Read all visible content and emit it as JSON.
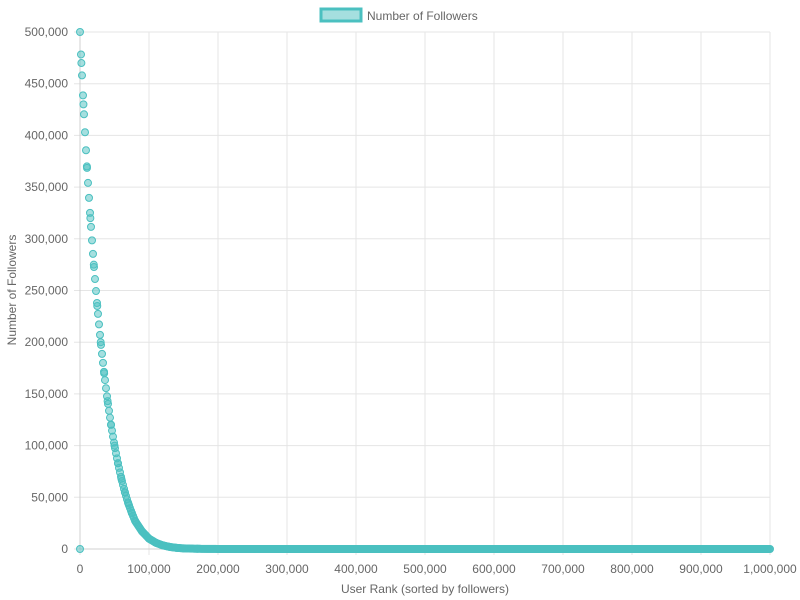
{
  "chart_data": {
    "type": "scatter",
    "title": "",
    "xlabel": "User Rank (sorted by followers)",
    "ylabel": "Number of Followers",
    "xlim": [
      0,
      1000000
    ],
    "ylim": [
      0,
      500000
    ],
    "x_ticks": [
      "0",
      "100,000",
      "200,000",
      "300,000",
      "400,000",
      "500,000",
      "600,000",
      "700,000",
      "800,000",
      "900,000",
      "1,000,000"
    ],
    "y_ticks": [
      "0",
      "50,000",
      "100,000",
      "150,000",
      "200,000",
      "250,000",
      "300,000",
      "350,000",
      "400,000",
      "450,000",
      "500,000"
    ],
    "grid": true,
    "legend_position": "top-center",
    "series": [
      {
        "name": "Number of Followers",
        "color": "#4bc0c0",
        "fill": "rgba(75,192,192,0.5)",
        "points": [
          {
            "x": 1,
            "y": 500000
          },
          {
            "x": 2000,
            "y": 470000
          },
          {
            "x": 5000,
            "y": 430000
          },
          {
            "x": 10000,
            "y": 370000
          },
          {
            "x": 15000,
            "y": 320000
          },
          {
            "x": 20000,
            "y": 275000
          },
          {
            "x": 25000,
            "y": 235000
          },
          {
            "x": 30000,
            "y": 200000
          },
          {
            "x": 35000,
            "y": 170000
          },
          {
            "x": 40000,
            "y": 143000
          },
          {
            "x": 45000,
            "y": 120000
          },
          {
            "x": 50000,
            "y": 100000
          },
          {
            "x": 55000,
            "y": 83000
          },
          {
            "x": 60000,
            "y": 68000
          },
          {
            "x": 65000,
            "y": 55000
          },
          {
            "x": 70000,
            "y": 44000
          },
          {
            "x": 75000,
            "y": 35000
          },
          {
            "x": 80000,
            "y": 27000
          },
          {
            "x": 90000,
            "y": 17000
          },
          {
            "x": 100000,
            "y": 10000
          },
          {
            "x": 110000,
            "y": 6000
          },
          {
            "x": 120000,
            "y": 3500
          },
          {
            "x": 130000,
            "y": 2000
          },
          {
            "x": 140000,
            "y": 1100
          },
          {
            "x": 150000,
            "y": 600
          },
          {
            "x": 170000,
            "y": 200
          },
          {
            "x": 200000,
            "y": 50
          },
          {
            "x": 300000,
            "y": 5
          },
          {
            "x": 400000,
            "y": 2
          },
          {
            "x": 500000,
            "y": 1
          },
          {
            "x": 600000,
            "y": 1
          },
          {
            "x": 700000,
            "y": 1
          },
          {
            "x": 800000,
            "y": 1
          },
          {
            "x": 900000,
            "y": 1
          },
          {
            "x": 1000000,
            "y": 1
          }
        ]
      }
    ]
  }
}
